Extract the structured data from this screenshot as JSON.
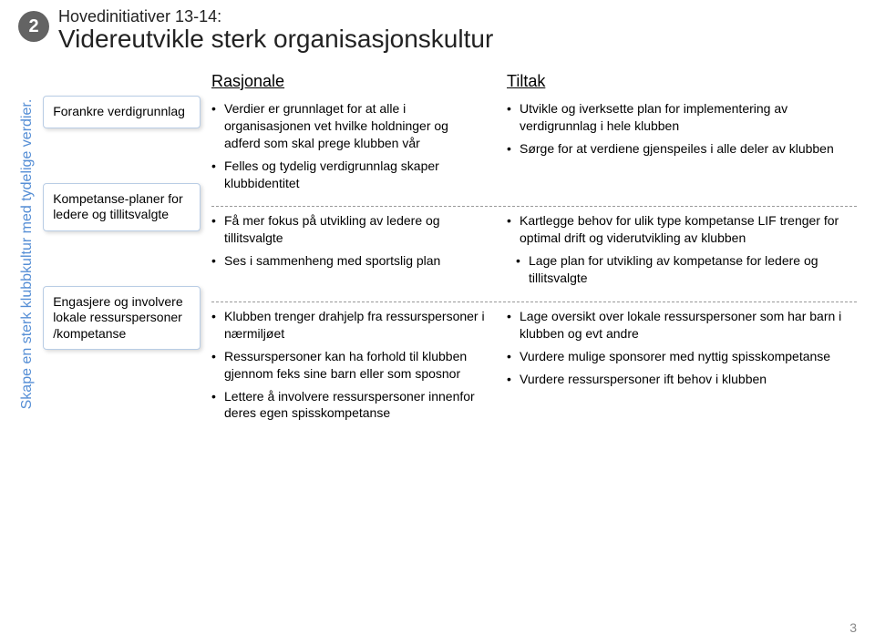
{
  "slide_number_badge": "2",
  "subtitle": "Hovedinitiativer 13-14:",
  "title": "Videreutvikle sterk organisasjonskultur",
  "vertical_label": "Skape en sterk klubbkultur med tydelige verdier.",
  "sidebar": {
    "items": [
      "Forankre verdigrunnlag",
      "Kompetanse-planer for ledere og tillitsvalgte",
      "Engasjere og involvere lokale ressurspersoner /kompetanse"
    ]
  },
  "columns": {
    "rasjonale_header": "Rasjonale",
    "tiltak_header": "Tiltak"
  },
  "rows": [
    {
      "rasjonale": [
        "Verdier er grunnlaget for at alle i organisasjonen vet hvilke holdninger og adferd som skal prege klubben vår",
        "Felles og tydelig verdigrunnlag skaper klubbidentitet"
      ],
      "tiltak": [
        "Utvikle og iverksette plan for implementering av verdigrunnlag i hele klubben",
        "Sørge for at verdiene gjenspeiles i alle deler av klubben"
      ]
    },
    {
      "rasjonale": [
        "Få mer fokus på utvikling av ledere og tillitsvalgte",
        "Ses i sammenheng med sportslig plan"
      ],
      "tiltak": [
        "Kartlegge behov for ulik type kompetanse LIF trenger for optimal drift og viderutvikling av klubben",
        "Lage plan for utvikling av kompetanse for ledere og tillitsvalgte"
      ],
      "tiltak_indent": [
        false,
        true
      ]
    },
    {
      "rasjonale": [
        "Klubben trenger drahjelp fra ressurspersoner i nærmiljøet",
        "Ressurspersoner kan ha forhold til klubben gjennom feks sine barn eller som sposnor",
        "Lettere å involvere ressurspersoner innenfor deres egen spisskompetanse"
      ],
      "tiltak": [
        "Lage oversikt over  lokale ressurspersoner som har barn i klubben  og evt andre",
        "Vurdere mulige sponsorer  med nyttig spisskompetanse",
        "Vurdere ressurspersoner ift behov i klubben"
      ]
    }
  ],
  "page_number": "3",
  "colors": {
    "badge_bg": "#636363",
    "badge_fg": "#ffffff",
    "vertical_label": "#558ed5",
    "box_border": "#b9cde5",
    "dash": "#999999",
    "pagenum": "#888888"
  }
}
